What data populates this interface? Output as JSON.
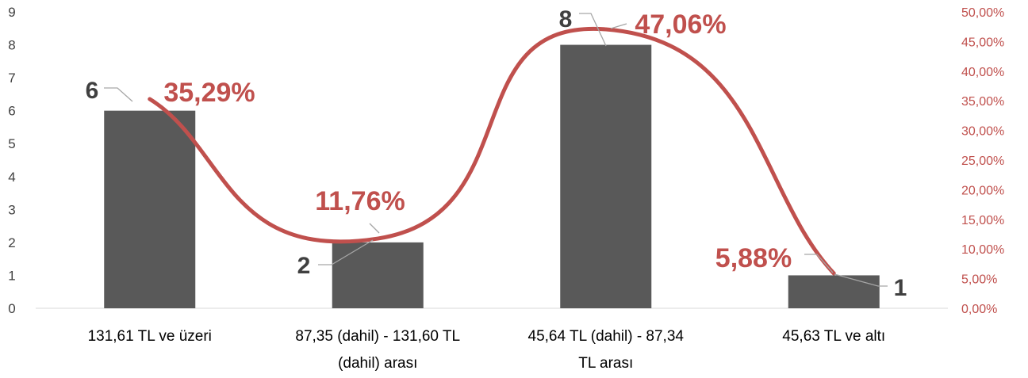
{
  "chart_data": {
    "type": "bar+line",
    "categories": [
      [
        "131,61 TL ve üzeri"
      ],
      [
        "87,35 (dahil) - 131,60 TL",
        "(dahil) arası"
      ],
      [
        "45,64 TL (dahil) - 87,34",
        "TL arası"
      ],
      [
        "45,63 TL ve altı"
      ]
    ],
    "series": [
      {
        "type": "bar",
        "axis": "left",
        "values": [
          6,
          2,
          8,
          1
        ],
        "labels": [
          "6",
          "2",
          "8",
          "1"
        ],
        "color": "#595959"
      },
      {
        "type": "line",
        "axis": "right",
        "smooth": true,
        "values": [
          35.29,
          11.76,
          47.06,
          5.88
        ],
        "labels": [
          "35,29%",
          "11,76%",
          "47,06%",
          "5,88%"
        ],
        "color": "#c0504d"
      }
    ],
    "y_left": {
      "min": 0,
      "max": 9,
      "ticks": [
        "0",
        "1",
        "2",
        "3",
        "4",
        "5",
        "6",
        "7",
        "8",
        "9"
      ]
    },
    "y_right": {
      "min": 0,
      "max": 50,
      "ticks": [
        "0,00%",
        "5,00%",
        "10,00%",
        "15,00%",
        "20,00%",
        "25,00%",
        "30,00%",
        "35,00%",
        "40,00%",
        "45,00%",
        "50,00%"
      ]
    },
    "grid": false,
    "legend": "none"
  }
}
